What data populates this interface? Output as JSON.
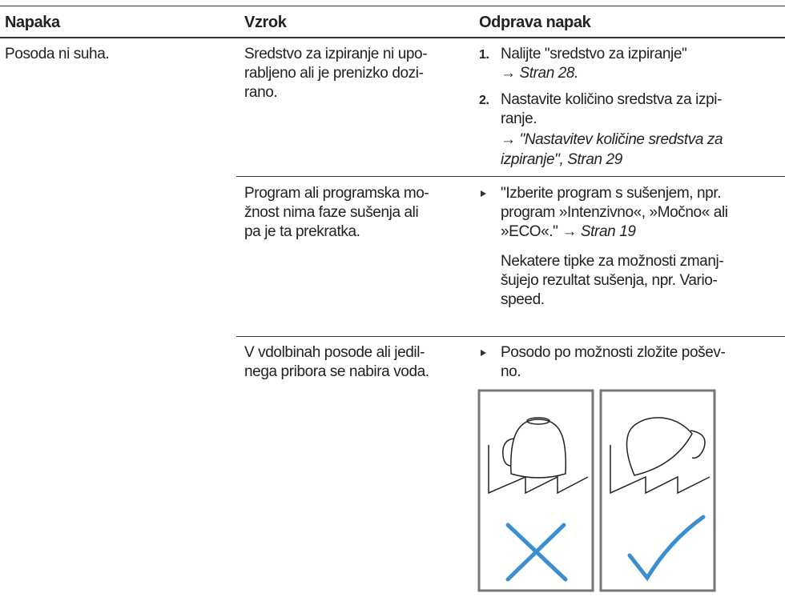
{
  "table": {
    "header": [
      "Napaka",
      "Vzrok",
      "Odprava napak"
    ],
    "rows": [
      {
        "problem": "Posoda ni suha.",
        "causes": [
          {
            "cause": [
              "Sredstvo za izpiranje ni upo-",
              "rabljeno ali je prenizko dozi-",
              "rano."
            ],
            "steps": [
              {
                "number": "1.",
                "text": [
                  "Nalijte \"sredstvo za izpiranje\""
                ],
                "ref": [
                  "→ Stran 28."
                ]
              },
              {
                "number": "2.",
                "text": [
                  "Nastavite količino sredstva za izpi-",
                  "ranje."
                ],
                "ref": [
                  "→ \"Nastavitev količine sredstva za",
                  "izpiranje\", Stran 29"
                ]
              }
            ]
          },
          {
            "cause": [
              "Program ali programska mo-",
              "žnost nima faze sušenja ali",
              "pa je ta prekratka."
            ],
            "remedy": [
              "\"Izberite program s sušenjem, npr.",
              "program »Intenzivno«, »Močno« ali",
              "»ECO«.\""
            ],
            "ref": "→ Stran 19",
            "note": [
              "Nekatere tipke za možnosti zmanj-",
              "šujejo rezultat sušenja, npr. Vario-",
              "speed."
            ]
          },
          {
            "cause": [
              "V vdolbinah posode ali jedil-",
              "nega pribora se nabira voda."
            ],
            "remedy": [
              "Posodo po možnosti zložite pošev-",
              "no."
            ]
          }
        ]
      }
    ]
  }
}
